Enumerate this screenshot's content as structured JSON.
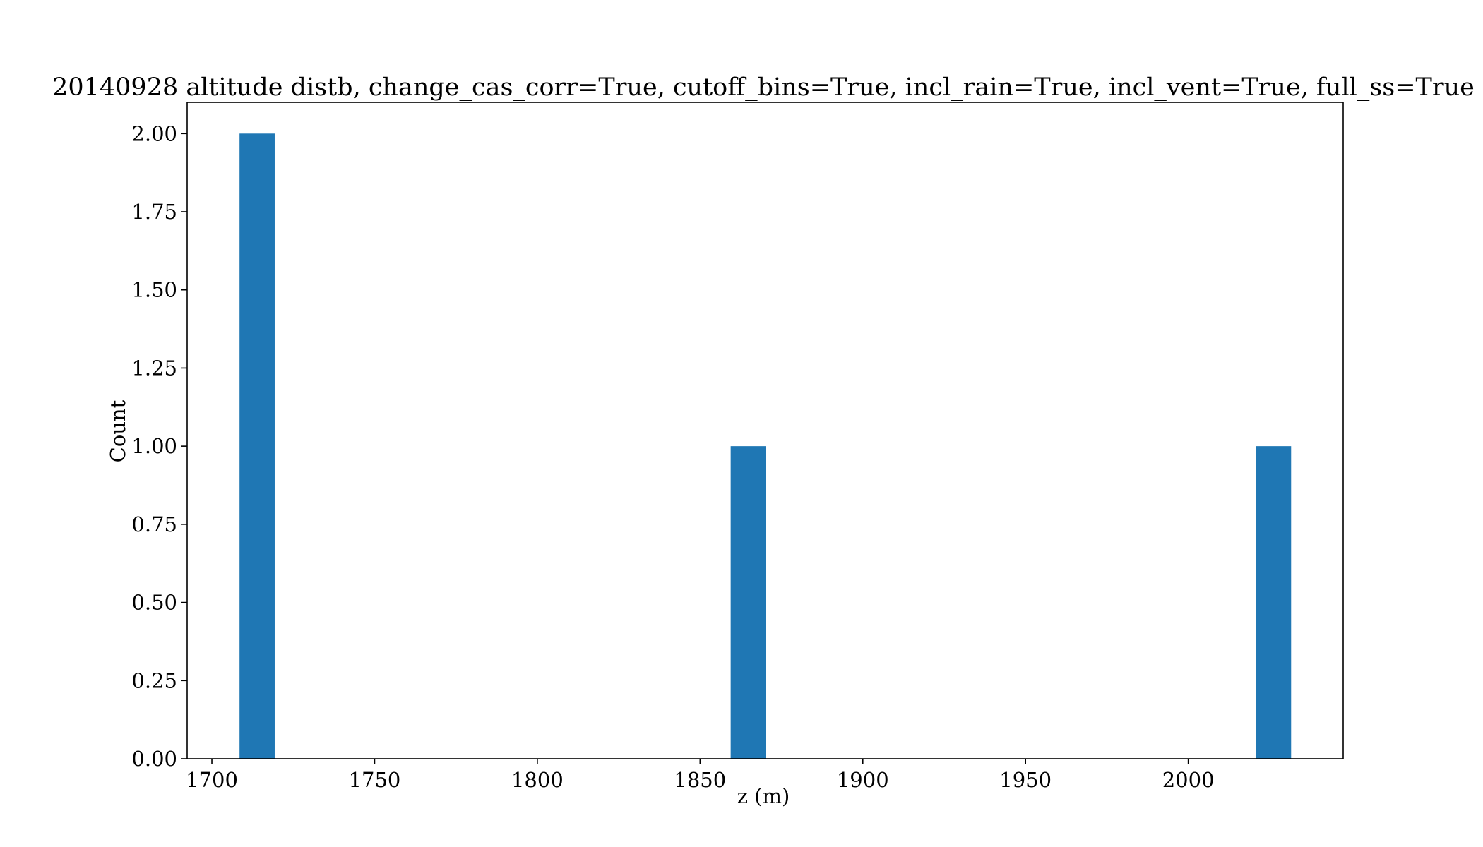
{
  "chart_data": {
    "type": "bar",
    "title": "20140928 altitude distb, change_cas_corr=True, cutoff_bins=True, incl_rain=True, incl_vent=True, full_ss=True",
    "xlabel": "z (m)",
    "ylabel": "Count",
    "bar_color": "#1f77b4",
    "xlim": [
      1692.4,
      2047.6
    ],
    "ylim": [
      0,
      2.1
    ],
    "bin_width": 10.8,
    "bars": [
      {
        "x_start": 1708.5,
        "x_end": 1719.3,
        "value": 2
      },
      {
        "x_start": 1859.4,
        "x_end": 1870.2,
        "value": 1
      },
      {
        "x_start": 2020.8,
        "x_end": 2031.6,
        "value": 1
      }
    ],
    "x_ticks": [
      {
        "value": 1700,
        "label": "1700"
      },
      {
        "value": 1750,
        "label": "1750"
      },
      {
        "value": 1800,
        "label": "1800"
      },
      {
        "value": 1850,
        "label": "1850"
      },
      {
        "value": 1900,
        "label": "1900"
      },
      {
        "value": 1950,
        "label": "1950"
      },
      {
        "value": 2000,
        "label": "2000"
      }
    ],
    "y_ticks": [
      {
        "value": 0.0,
        "label": "0.00"
      },
      {
        "value": 0.25,
        "label": "0.25"
      },
      {
        "value": 0.5,
        "label": "0.50"
      },
      {
        "value": 0.75,
        "label": "0.75"
      },
      {
        "value": 1.0,
        "label": "1.00"
      },
      {
        "value": 1.25,
        "label": "1.25"
      },
      {
        "value": 1.5,
        "label": "1.50"
      },
      {
        "value": 1.75,
        "label": "1.75"
      },
      {
        "value": 2.0,
        "label": "2.00"
      }
    ],
    "grid": false,
    "legend": "none"
  }
}
